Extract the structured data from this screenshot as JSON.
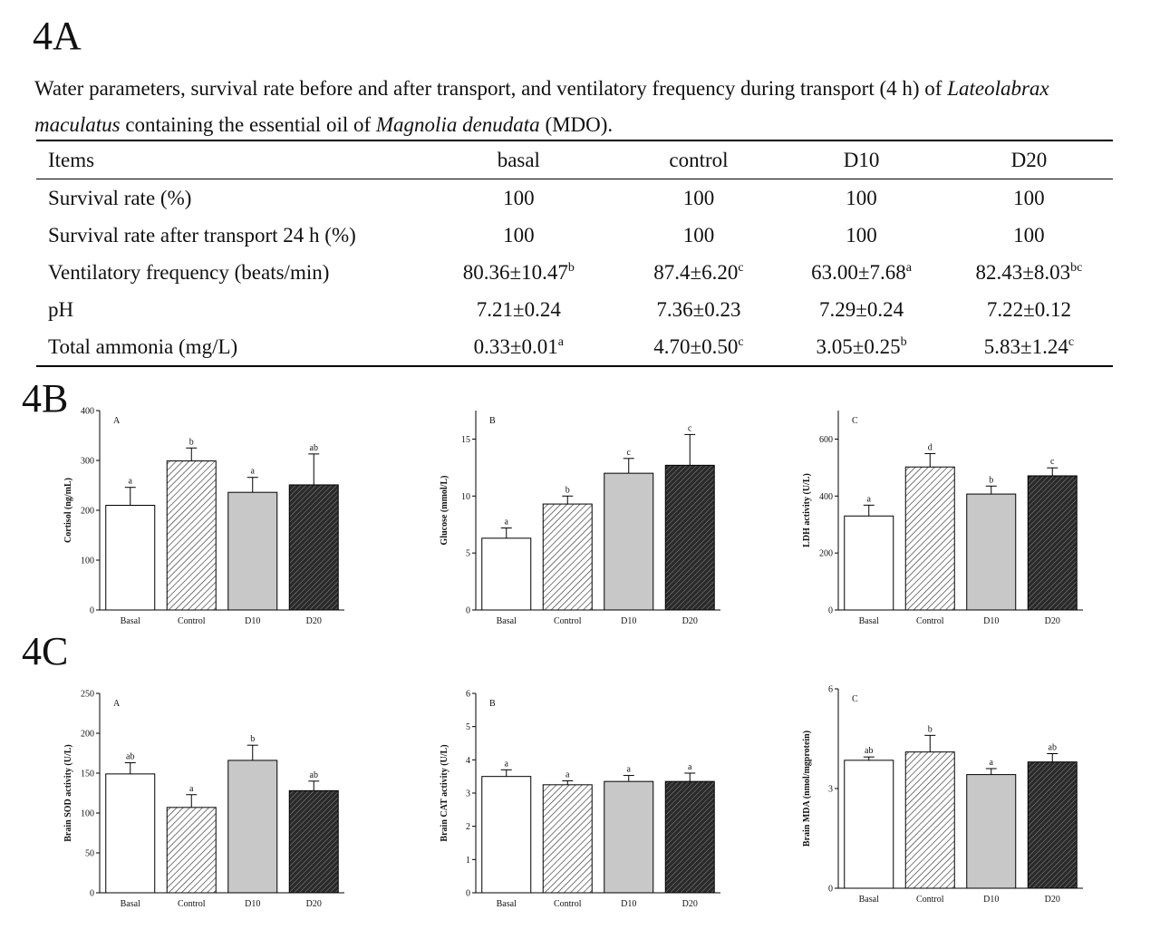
{
  "section_labels": {
    "a": "4A",
    "b": "4B",
    "c": "4C"
  },
  "caption": {
    "part1": "Water parameters, survival rate before and after transport, and ventilatory frequency during transport (4 h) of ",
    "species": "Lateolabrax maculatus",
    "part2": " containing the essential oil of ",
    "oil": "Magnolia denudata",
    "part3": " (MDO)."
  },
  "table": {
    "headers": [
      "Items",
      "basal",
      "control",
      "D10",
      "D20"
    ],
    "rows": [
      {
        "item": "Survival rate (%)",
        "cells": [
          {
            "v": "100",
            "s": ""
          },
          {
            "v": "100",
            "s": ""
          },
          {
            "v": "100",
            "s": ""
          },
          {
            "v": "100",
            "s": ""
          }
        ]
      },
      {
        "item": "Survival rate after transport 24 h (%)",
        "cells": [
          {
            "v": "100",
            "s": ""
          },
          {
            "v": "100",
            "s": ""
          },
          {
            "v": "100",
            "s": ""
          },
          {
            "v": "100",
            "s": ""
          }
        ]
      },
      {
        "item": "Ventilatory frequency (beats/min)",
        "cells": [
          {
            "v": "80.36±10.47",
            "s": "b"
          },
          {
            "v": "87.4±6.20",
            "s": "c"
          },
          {
            "v": "63.00±7.68",
            "s": "a"
          },
          {
            "v": "82.43±8.03",
            "s": "bc"
          }
        ]
      },
      {
        "item": "pH",
        "cells": [
          {
            "v": "7.21±0.24",
            "s": ""
          },
          {
            "v": "7.36±0.23",
            "s": ""
          },
          {
            "v": "7.29±0.24",
            "s": ""
          },
          {
            "v": "7.22±0.12",
            "s": ""
          }
        ]
      },
      {
        "item": "Total ammonia (mg/L)",
        "cells": [
          {
            "v": "0.33±0.01",
            "s": "a"
          },
          {
            "v": "4.70±0.50",
            "s": "c"
          },
          {
            "v": "3.05±0.25",
            "s": "b"
          },
          {
            "v": "5.83±1.24",
            "s": "c"
          }
        ]
      }
    ]
  },
  "bar_fills": [
    "#ffffff",
    "#ffffff",
    "#c8c8c8",
    "#505050"
  ],
  "bar_hatch": [
    "none",
    "light-diagonal",
    "none",
    "dark-diagonal"
  ],
  "chart_data": [
    {
      "id": "b-a",
      "type": "bar",
      "panel": "A",
      "ylabel": "Cortisol (ng/mL)",
      "categories": [
        "Basal",
        "Control",
        "D10",
        "D20"
      ],
      "values": [
        210,
        299,
        236,
        251
      ],
      "errors": [
        36,
        26,
        30,
        62
      ],
      "letters": [
        "a",
        "b",
        "a",
        "ab"
      ],
      "ylim": [
        0,
        400
      ],
      "yticks": [
        0,
        100,
        200,
        300,
        400
      ]
    },
    {
      "id": "b-b",
      "type": "bar",
      "panel": "B",
      "ylabel": "Glucose (mmol/L)",
      "categories": [
        "Basal",
        "Control",
        "D10",
        "D20"
      ],
      "values": [
        6.3,
        9.3,
        12.0,
        12.7
      ],
      "errors": [
        0.9,
        0.7,
        1.3,
        2.7
      ],
      "letters": [
        "a",
        "b",
        "c",
        "c"
      ],
      "ylim": [
        0,
        17.5
      ],
      "yticks": [
        0,
        5,
        10,
        15
      ]
    },
    {
      "id": "b-c",
      "type": "bar",
      "panel": "C",
      "ylabel": "LDH activity (U/L)",
      "categories": [
        "Basal",
        "Control",
        "D10",
        "D20"
      ],
      "values": [
        330,
        502,
        407,
        471
      ],
      "errors": [
        38,
        47,
        28,
        28
      ],
      "letters": [
        "a",
        "d",
        "b",
        "c"
      ],
      "ylim": [
        0,
        700
      ],
      "yticks": [
        0,
        200,
        400,
        600
      ]
    },
    {
      "id": "c-a",
      "type": "bar",
      "panel": "A",
      "ylabel": "Brain SOD activity (U/L)",
      "categories": [
        "Basal",
        "Control",
        "D10",
        "D20"
      ],
      "values": [
        149,
        107,
        166,
        128
      ],
      "errors": [
        14,
        16,
        19,
        12
      ],
      "letters": [
        "ab",
        "a",
        "b",
        "ab"
      ],
      "ylim": [
        0,
        250
      ],
      "yticks": [
        0,
        50,
        100,
        150,
        200,
        250
      ]
    },
    {
      "id": "c-b",
      "type": "bar",
      "panel": "B",
      "ylabel": "Brain CAT activity (U/L)",
      "categories": [
        "Basal",
        "Control",
        "D10",
        "D20"
      ],
      "values": [
        3.5,
        3.25,
        3.35,
        3.35
      ],
      "errors": [
        0.2,
        0.12,
        0.18,
        0.25
      ],
      "letters": [
        "a",
        "a",
        "a",
        "a"
      ],
      "ylim": [
        0,
        6
      ],
      "yticks": [
        0,
        1,
        2,
        3,
        4,
        5,
        6
      ]
    },
    {
      "id": "c-c",
      "type": "bar",
      "panel": "C",
      "ylabel": "Brain MDA (nmol/mgprotein)",
      "categories": [
        "Basal",
        "Control",
        "D10",
        "D20"
      ],
      "values": [
        3.85,
        4.1,
        3.42,
        3.8
      ],
      "errors": [
        0.1,
        0.5,
        0.18,
        0.25
      ],
      "letters": [
        "ab",
        "b",
        "a",
        "ab"
      ],
      "ylim": [
        0,
        6
      ],
      "yticks": [
        0,
        3,
        6
      ]
    }
  ]
}
